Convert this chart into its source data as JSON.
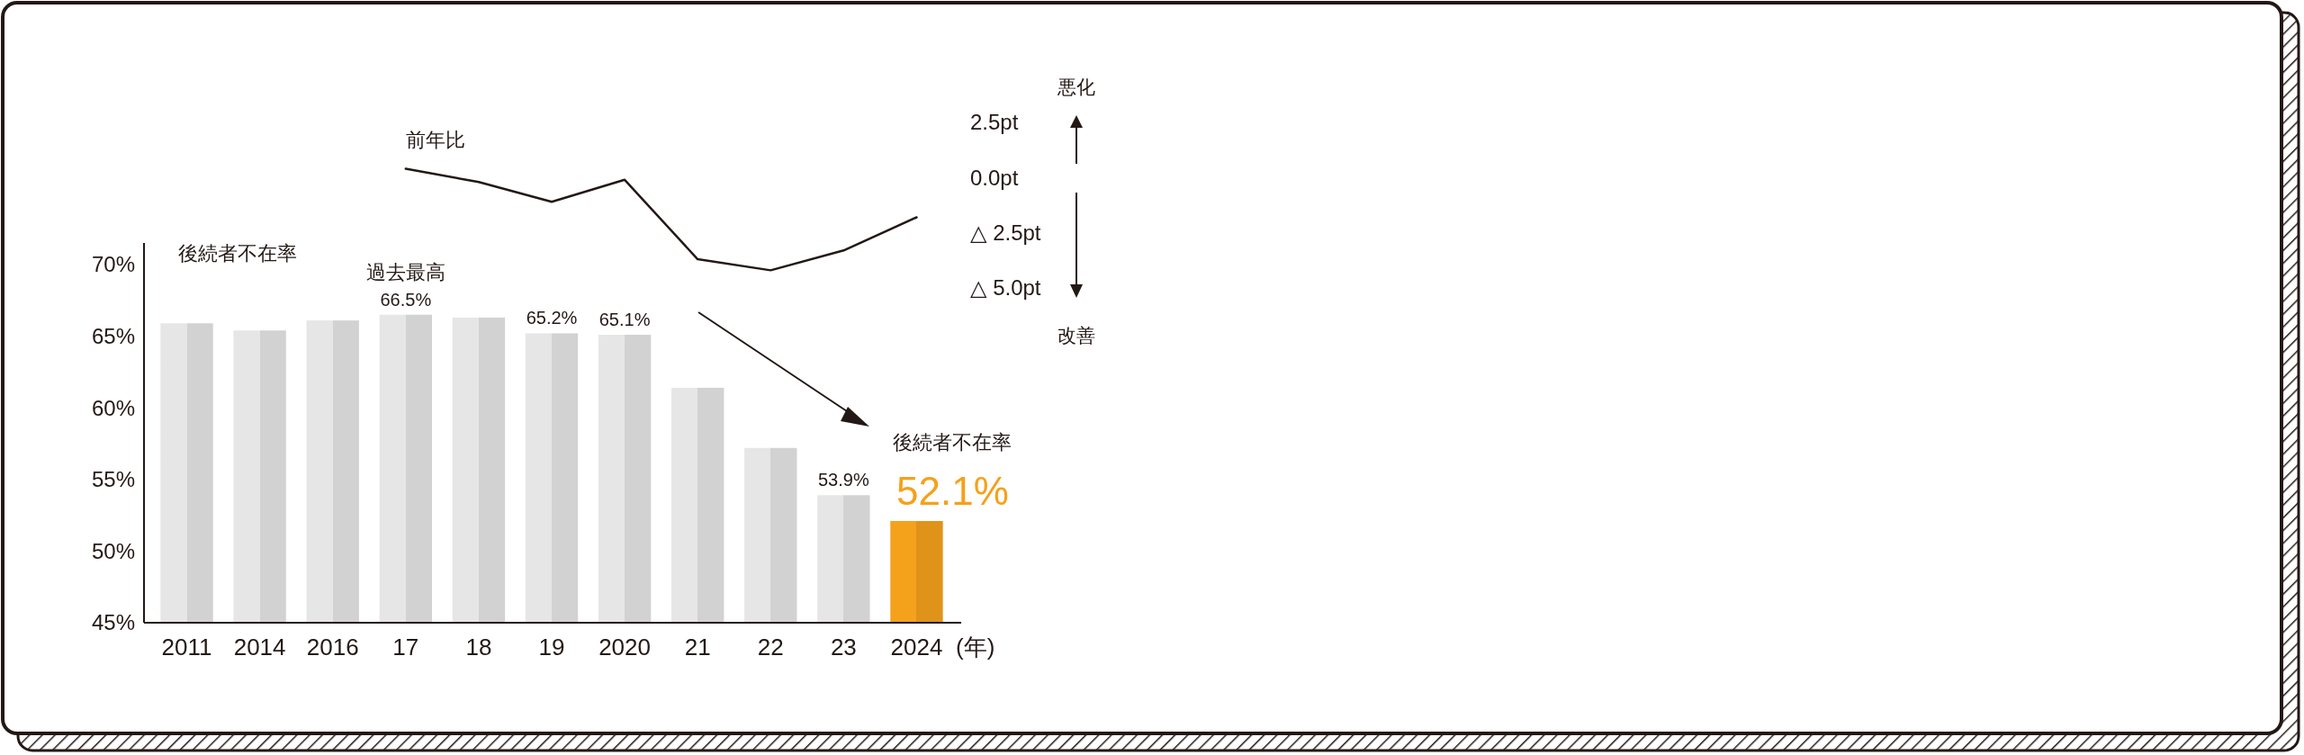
{
  "chart_data": [
    {
      "type": "bar",
      "ylabel": "後続者不在率",
      "xlabel": "(年)",
      "categories": [
        "2011",
        "2014",
        "2016",
        "17",
        "18",
        "19",
        "2020",
        "21",
        "22",
        "23",
        "2024"
      ],
      "series": [
        {
          "color": "#e6e6e6",
          "colors": [
            "#e6e6e6",
            "#e6e6e6",
            "#e6e6e6",
            "#e6e6e6",
            "#e6e6e6",
            "#e6e6e6",
            "#e6e6e6",
            "#e6e6e6",
            "#e6e6e6",
            "#e6e6e6",
            "#f4a11b"
          ],
          "values": [
            65.9,
            65.4,
            66.1,
            66.5,
            66.3,
            65.2,
            65.1,
            61.4,
            57.2,
            53.9,
            52.1
          ],
          "value_labels": [
            null,
            null,
            null,
            "66.5%",
            null,
            "65.2%",
            "65.1%",
            null,
            null,
            "53.9%",
            "52.1%"
          ]
        }
      ],
      "ylim": [
        45,
        71.5
      ],
      "yticks": [
        {
          "value": 45,
          "label": "45%"
        },
        {
          "value": 50,
          "label": "50%"
        },
        {
          "value": 55,
          "label": "55%"
        },
        {
          "value": 60,
          "label": "60%"
        },
        {
          "value": 65,
          "label": "65%"
        },
        {
          "value": 70,
          "label": "70%"
        }
      ],
      "annotations": [
        {
          "text": "過去最高",
          "x": "17",
          "y": 66.5
        },
        "後続者不在率"
      ]
    },
    {
      "type": "line",
      "categories": [
        "17",
        "18",
        "19",
        "2020",
        "21",
        "22",
        "23",
        "2024"
      ],
      "series": [
        {
          "name": "前年比",
          "color": "#231815",
          "values": [
            0.4,
            -0.2,
            -1.1,
            -0.1,
            -3.7,
            -4.2,
            -3.3,
            -1.8
          ]
        }
      ],
      "ylim": [
        -5,
        2.5
      ],
      "yticks": [
        {
          "value": 2.5,
          "label": "2.5pt"
        },
        {
          "value": 0,
          "label": "0.0pt"
        },
        {
          "value": -2.5,
          "label": "△ 2.5pt"
        },
        {
          "value": -5,
          "label": "△ 5.0pt"
        }
      ],
      "tick_labels": "y",
      "annotations": [
        "悪化",
        "改善"
      ]
    }
  ]
}
